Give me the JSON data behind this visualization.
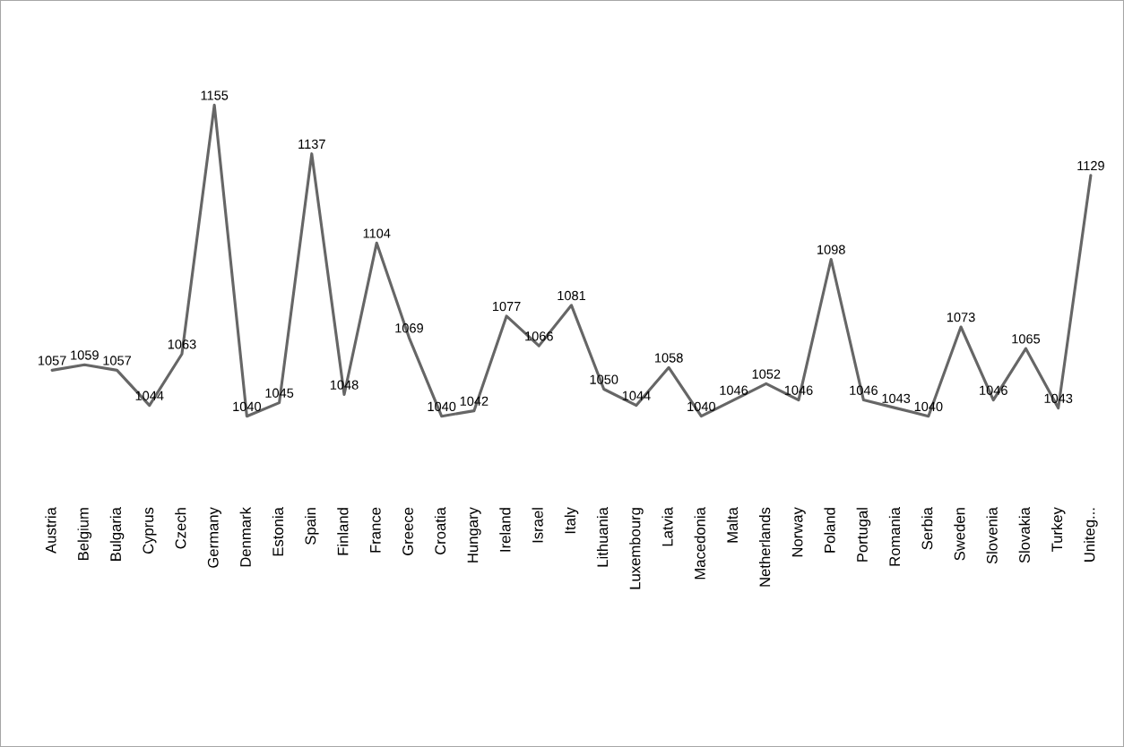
{
  "chart_data": {
    "type": "line",
    "categories": [
      "Austria",
      "Belgium",
      "Bulgaria",
      "Cyprus",
      "Czech",
      "Germany",
      "Denmark",
      "Estonia",
      "Spain",
      "Finland",
      "France",
      "Greece",
      "Croatia",
      "Hungary",
      "Ireland",
      "Israel",
      "Italy",
      "Lithuania",
      "Luxembourg",
      "Latvia",
      "Macedonia",
      "Malta",
      "Netherlands",
      "Norway",
      "Poland",
      "Portugal",
      "Romania",
      "Serbia",
      "Sweden",
      "Slovenia",
      "Slovakia",
      "Turkey",
      "Uniteg..."
    ],
    "series": [
      {
        "color": "#666666",
        "values": [
          1057,
          1059,
          1057,
          1044,
          1063,
          1155,
          1040,
          1045,
          1137,
          1048,
          1104,
          1069,
          1040,
          1042,
          1077,
          1066,
          1081,
          1050,
          1044,
          1058,
          1040,
          1046,
          1052,
          1046,
          1098,
          1046,
          1043,
          1040,
          1073,
          1046,
          1065,
          1043,
          1129
        ]
      }
    ],
    "data_labels": true,
    "tick_labels": "x",
    "grid": false,
    "legend": false,
    "marker": "none",
    "line_style": "solid"
  }
}
